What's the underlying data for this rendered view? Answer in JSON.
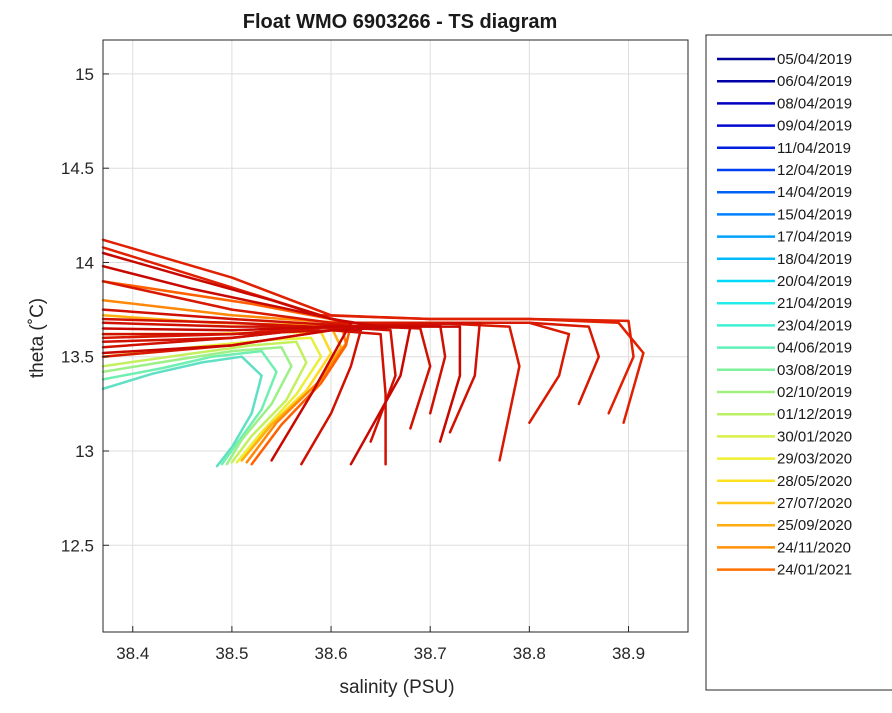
{
  "chart_data": {
    "type": "line",
    "title": "Float WMO 6903266 - TS diagram",
    "xlabel": "salinity (PSU)",
    "ylabel": "theta (˚C)",
    "xlim": [
      38.37,
      38.96
    ],
    "ylim": [
      12.04,
      15.18
    ],
    "x_ticks": [
      "38.4",
      "38.5",
      "38.6",
      "38.7",
      "38.8",
      "38.9"
    ],
    "y_ticks": [
      "12.5",
      "13",
      "13.5",
      "14",
      "14.5",
      "15"
    ],
    "grid": true,
    "legend_position": "outside-right",
    "legend": [
      {
        "label": "05/04/2019",
        "color": "#000096"
      },
      {
        "label": "06/04/2019",
        "color": "#0000a8"
      },
      {
        "label": "08/04/2019",
        "color": "#0000be"
      },
      {
        "label": "09/04/2019",
        "color": "#0008d0"
      },
      {
        "label": "11/04/2019",
        "color": "#0020e0"
      },
      {
        "label": "12/04/2019",
        "color": "#0040f0"
      },
      {
        "label": "14/04/2019",
        "color": "#0060f8"
      },
      {
        "label": "15/04/2019",
        "color": "#0080ff"
      },
      {
        "label": "17/04/2019",
        "color": "#00a0ff"
      },
      {
        "label": "18/04/2019",
        "color": "#00bcff"
      },
      {
        "label": "20/04/2019",
        "color": "#00d8f8"
      },
      {
        "label": "21/04/2019",
        "color": "#20ecec"
      },
      {
        "label": "23/04/2019",
        "color": "#40f0d4"
      },
      {
        "label": "04/06/2019",
        "color": "#60f0b8"
      },
      {
        "label": "03/08/2019",
        "color": "#80f09c"
      },
      {
        "label": "02/10/2019",
        "color": "#a0f080"
      },
      {
        "label": "01/12/2019",
        "color": "#bcf064"
      },
      {
        "label": "30/01/2020",
        "color": "#d8f048"
      },
      {
        "label": "29/03/2020",
        "color": "#f0f030"
      },
      {
        "label": "28/05/2020",
        "color": "#ffe020"
      },
      {
        "label": "27/07/2020",
        "color": "#ffc818"
      },
      {
        "label": "25/09/2020",
        "color": "#ffac10"
      },
      {
        "label": "24/11/2020",
        "color": "#ff9008"
      },
      {
        "label": "24/01/2021",
        "color": "#ff7000"
      }
    ],
    "series": [
      {
        "color": "#5fe0c4",
        "x": [
          38.37,
          38.42,
          38.47,
          38.51,
          38.53,
          38.52,
          38.5,
          38.485
        ],
        "y": [
          13.33,
          13.41,
          13.47,
          13.5,
          13.4,
          13.2,
          13.02,
          12.92
        ]
      },
      {
        "color": "#70f0b0",
        "x": [
          38.37,
          38.43,
          38.48,
          38.53,
          38.545,
          38.53,
          38.505,
          38.49
        ],
        "y": [
          13.38,
          13.44,
          13.5,
          13.53,
          13.42,
          13.22,
          13.04,
          12.93
        ]
      },
      {
        "color": "#9cf088",
        "x": [
          38.37,
          38.44,
          38.5,
          38.55,
          38.56,
          38.54,
          38.51,
          38.495
        ],
        "y": [
          13.42,
          13.48,
          13.53,
          13.55,
          13.45,
          13.25,
          13.06,
          12.93
        ]
      },
      {
        "color": "#c4f060",
        "x": [
          38.37,
          38.45,
          38.52,
          38.565,
          38.575,
          38.555,
          38.52,
          38.5
        ],
        "y": [
          13.45,
          13.51,
          13.56,
          13.58,
          13.47,
          13.27,
          13.08,
          12.94
        ]
      },
      {
        "color": "#e8f038",
        "x": [
          38.37,
          38.46,
          38.54,
          38.58,
          38.59,
          38.565,
          38.53,
          38.505
        ],
        "y": [
          13.5,
          13.55,
          13.59,
          13.6,
          13.5,
          13.3,
          13.1,
          12.94
        ]
      },
      {
        "color": "#ffd820",
        "x": [
          38.37,
          38.47,
          38.55,
          38.59,
          38.6,
          38.575,
          38.535,
          38.51
        ],
        "y": [
          13.62,
          13.62,
          13.63,
          13.63,
          13.52,
          13.32,
          13.12,
          12.95
        ]
      },
      {
        "color": "#ffb010",
        "x": [
          38.37,
          38.48,
          38.56,
          38.6,
          38.61,
          38.585,
          38.54,
          38.51
        ],
        "y": [
          13.72,
          13.68,
          13.67,
          13.66,
          13.55,
          13.35,
          13.14,
          12.95
        ]
      },
      {
        "color": "#ff8808",
        "x": [
          38.37,
          38.5,
          38.58,
          38.61,
          38.615,
          38.59,
          38.545,
          38.515
        ],
        "y": [
          13.8,
          13.72,
          13.69,
          13.68,
          13.57,
          13.38,
          13.15,
          12.94
        ]
      },
      {
        "color": "#ff6000",
        "x": [
          38.37,
          38.52,
          38.6,
          38.62,
          38.615,
          38.59,
          38.55,
          38.52
        ],
        "y": [
          13.9,
          13.78,
          13.7,
          13.67,
          13.56,
          13.36,
          13.14,
          12.93
        ]
      },
      {
        "color": "#e02000",
        "x": [
          38.37,
          38.5,
          38.6,
          38.7,
          38.8,
          38.9,
          38.905,
          38.88
        ],
        "y": [
          14.12,
          13.92,
          13.72,
          13.7,
          13.7,
          13.69,
          13.5,
          13.2
        ]
      },
      {
        "color": "#e02000",
        "x": [
          38.37,
          38.48,
          38.59,
          38.7,
          38.8,
          38.89,
          38.915,
          38.895
        ],
        "y": [
          14.08,
          13.9,
          13.72,
          13.7,
          13.7,
          13.68,
          13.52,
          13.15
        ]
      },
      {
        "color": "#d81800",
        "x": [
          38.37,
          38.5,
          38.6,
          38.7,
          38.8,
          38.86,
          38.87,
          38.85
        ],
        "y": [
          13.9,
          13.75,
          13.68,
          13.68,
          13.68,
          13.66,
          13.5,
          13.25
        ]
      },
      {
        "color": "#d81800",
        "x": [
          38.37,
          38.5,
          38.6,
          38.7,
          38.8,
          38.84,
          38.83,
          38.8
        ],
        "y": [
          13.6,
          13.62,
          13.66,
          13.68,
          13.68,
          13.62,
          13.4,
          13.15
        ]
      },
      {
        "color": "#d81800",
        "x": [
          38.37,
          38.5,
          38.6,
          38.7,
          38.78,
          38.79,
          38.77
        ],
        "y": [
          13.5,
          13.56,
          13.64,
          13.68,
          13.66,
          13.45,
          12.95
        ]
      },
      {
        "color": "#d01000",
        "x": [
          38.37,
          38.5,
          38.6,
          38.69,
          38.7,
          38.68
        ],
        "y": [
          13.75,
          13.7,
          13.67,
          13.65,
          13.45,
          13.12
        ]
      },
      {
        "color": "#d01000",
        "x": [
          38.37,
          38.5,
          38.6,
          38.66,
          38.665,
          38.64
        ],
        "y": [
          13.68,
          13.66,
          13.66,
          13.64,
          13.4,
          13.05
        ]
      },
      {
        "color": "#d01000",
        "x": [
          38.37,
          38.5,
          38.6,
          38.65,
          38.655,
          38.655
        ],
        "y": [
          13.62,
          13.62,
          13.64,
          13.62,
          13.3,
          12.93
        ]
      },
      {
        "color": "#d01000",
        "x": [
          38.37,
          38.5,
          38.58,
          38.63,
          38.62,
          38.6,
          38.57
        ],
        "y": [
          13.7,
          13.68,
          13.66,
          13.64,
          13.45,
          13.2,
          12.93
        ]
      },
      {
        "color": "#d01000",
        "x": [
          38.37,
          38.5,
          38.6,
          38.71,
          38.715,
          38.7
        ],
        "y": [
          13.55,
          13.6,
          13.66,
          13.67,
          13.5,
          13.2
        ]
      },
      {
        "color": "#d01000",
        "x": [
          38.37,
          38.5,
          38.6,
          38.75,
          38.745,
          38.72
        ],
        "y": [
          13.58,
          13.6,
          13.66,
          13.68,
          13.4,
          13.1
        ]
      },
      {
        "color": "#c80800",
        "x": [
          38.37,
          38.5,
          38.6,
          38.73,
          38.73,
          38.71
        ],
        "y": [
          13.65,
          13.64,
          13.66,
          13.66,
          13.4,
          13.05
        ]
      },
      {
        "color": "#c80800",
        "x": [
          38.37,
          38.45,
          38.54,
          38.6,
          38.65
        ],
        "y": [
          14.05,
          13.93,
          13.8,
          13.7,
          13.66
        ]
      },
      {
        "color": "#c80800",
        "x": [
          38.37,
          38.46,
          38.55,
          38.62,
          38.58,
          38.54
        ],
        "y": [
          13.98,
          13.86,
          13.76,
          13.68,
          13.3,
          12.95
        ]
      },
      {
        "color": "#c80800",
        "x": [
          38.37,
          38.5,
          38.6,
          38.68,
          38.67,
          38.62
        ],
        "y": [
          13.52,
          13.56,
          13.64,
          13.66,
          13.4,
          12.93
        ]
      }
    ]
  }
}
